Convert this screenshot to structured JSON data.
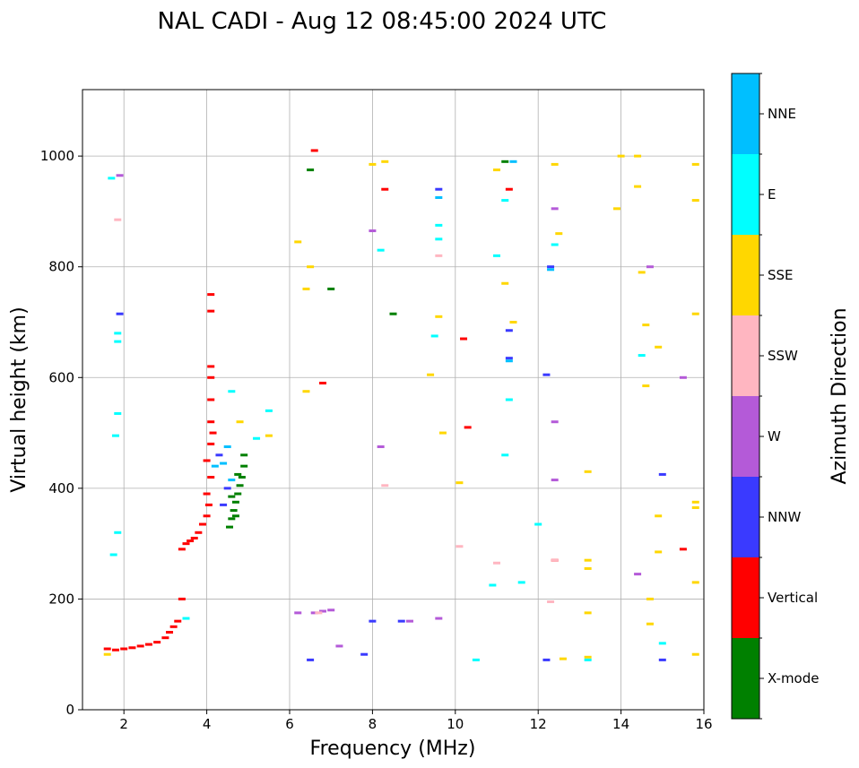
{
  "chart_data": {
    "type": "scatter",
    "title": "NAL CADI - Aug 12 08:45:00 2024 UTC",
    "xlabel": "Frequency (MHz)",
    "ylabel": "Virtual height (km)",
    "xlim": [
      1,
      16
    ],
    "ylim": [
      0,
      1120
    ],
    "xticks": [
      "2",
      "4",
      "6",
      "8",
      "10",
      "12",
      "14",
      "16"
    ],
    "yticks": [
      "0",
      "200",
      "400",
      "600",
      "800",
      "1000"
    ],
    "grid": true,
    "colorbar": {
      "label": "Azimuth Direction",
      "categories": [
        "X-mode",
        "Vertical",
        "NNW",
        "W",
        "SSW",
        "SSE",
        "E",
        "NNE"
      ],
      "colors": [
        "#008000",
        "#ff0000",
        "#3a3aff",
        "#b45ad8",
        "#ffb6c1",
        "#ffd700",
        "#00ffff",
        "#00bfff"
      ]
    },
    "series": [
      {
        "name": "X-mode",
        "points": [
          [
            4.55,
            330
          ],
          [
            4.6,
            345
          ],
          [
            4.65,
            360
          ],
          [
            4.7,
            375
          ],
          [
            4.75,
            390
          ],
          [
            4.8,
            405
          ],
          [
            4.85,
            420
          ],
          [
            4.9,
            440
          ],
          [
            4.9,
            460
          ],
          [
            4.7,
            350
          ],
          [
            4.6,
            385
          ],
          [
            4.75,
            425
          ],
          [
            11.2,
            990
          ],
          [
            7.0,
            760
          ],
          [
            8.5,
            715
          ],
          [
            6.5,
            975
          ]
        ]
      },
      {
        "name": "Vertical",
        "points": [
          [
            1.6,
            110
          ],
          [
            1.8,
            108
          ],
          [
            2.0,
            110
          ],
          [
            2.2,
            112
          ],
          [
            2.4,
            115
          ],
          [
            2.6,
            118
          ],
          [
            2.8,
            122
          ],
          [
            3.0,
            130
          ],
          [
            3.1,
            140
          ],
          [
            3.2,
            150
          ],
          [
            3.3,
            160
          ],
          [
            3.4,
            200
          ],
          [
            3.4,
            290
          ],
          [
            3.5,
            300
          ],
          [
            3.6,
            305
          ],
          [
            3.7,
            310
          ],
          [
            3.8,
            320
          ],
          [
            3.9,
            335
          ],
          [
            4.0,
            350
          ],
          [
            4.05,
            370
          ],
          [
            4.0,
            390
          ],
          [
            4.1,
            420
          ],
          [
            4.0,
            450
          ],
          [
            4.1,
            480
          ],
          [
            4.15,
            500
          ],
          [
            4.1,
            520
          ],
          [
            4.1,
            560
          ],
          [
            4.1,
            600
          ],
          [
            4.1,
            620
          ],
          [
            4.1,
            720
          ],
          [
            4.1,
            750
          ],
          [
            6.6,
            1010
          ],
          [
            6.8,
            590
          ],
          [
            10.2,
            670
          ],
          [
            11.3,
            940
          ],
          [
            10.3,
            510
          ],
          [
            12.4,
            270
          ],
          [
            15.5,
            290
          ],
          [
            8.3,
            940
          ]
        ]
      },
      {
        "name": "NNW",
        "points": [
          [
            1.9,
            715
          ],
          [
            4.3,
            460
          ],
          [
            4.5,
            400
          ],
          [
            4.4,
            370
          ],
          [
            8.0,
            160
          ],
          [
            8.7,
            160
          ],
          [
            12.2,
            605
          ],
          [
            12.3,
            800
          ],
          [
            11.3,
            685
          ],
          [
            11.3,
            635
          ],
          [
            15.0,
            425
          ],
          [
            15.0,
            90
          ],
          [
            12.2,
            90
          ],
          [
            6.5,
            90
          ],
          [
            7.8,
            100
          ],
          [
            9.6,
            940
          ]
        ]
      },
      {
        "name": "W",
        "points": [
          [
            1.9,
            965
          ],
          [
            6.2,
            175
          ],
          [
            6.6,
            175
          ],
          [
            6.8,
            178
          ],
          [
            7.0,
            180
          ],
          [
            7.2,
            115
          ],
          [
            8.2,
            475
          ],
          [
            8.0,
            865
          ],
          [
            12.4,
            905
          ],
          [
            12.4,
            520
          ],
          [
            12.4,
            415
          ],
          [
            14.4,
            245
          ],
          [
            14.7,
            800
          ],
          [
            15.5,
            600
          ],
          [
            9.6,
            165
          ],
          [
            8.9,
            160
          ]
        ]
      },
      {
        "name": "SSW",
        "points": [
          [
            1.85,
            885
          ],
          [
            10.1,
            295
          ],
          [
            12.3,
            195
          ],
          [
            12.4,
            270
          ],
          [
            9.6,
            820
          ],
          [
            11.0,
            265
          ],
          [
            8.3,
            405
          ],
          [
            6.7,
            175
          ]
        ]
      },
      {
        "name": "SSE",
        "points": [
          [
            1.6,
            100
          ],
          [
            6.4,
            760
          ],
          [
            6.5,
            800
          ],
          [
            6.2,
            845
          ],
          [
            8.0,
            985
          ],
          [
            8.3,
            990
          ],
          [
            9.4,
            605
          ],
          [
            9.6,
            710
          ],
          [
            9.7,
            500
          ],
          [
            10.1,
            410
          ],
          [
            11.0,
            975
          ],
          [
            11.2,
            770
          ],
          [
            11.4,
            700
          ],
          [
            12.4,
            985
          ],
          [
            12.5,
            860
          ],
          [
            13.2,
            430
          ],
          [
            13.2,
            270
          ],
          [
            13.2,
            255
          ],
          [
            13.2,
            175
          ],
          [
            13.2,
            95
          ],
          [
            12.6,
            92
          ],
          [
            14.0,
            1000
          ],
          [
            14.4,
            1000
          ],
          [
            14.5,
            790
          ],
          [
            14.6,
            695
          ],
          [
            14.9,
            655
          ],
          [
            14.6,
            585
          ],
          [
            14.9,
            350
          ],
          [
            14.9,
            285
          ],
          [
            14.7,
            200
          ],
          [
            14.7,
            155
          ],
          [
            15.8,
            985
          ],
          [
            15.8,
            920
          ],
          [
            15.8,
            715
          ],
          [
            15.8,
            375
          ],
          [
            15.8,
            365
          ],
          [
            15.8,
            230
          ],
          [
            15.8,
            100
          ],
          [
            14.4,
            945
          ],
          [
            13.9,
            905
          ],
          [
            4.8,
            520
          ],
          [
            5.5,
            495
          ],
          [
            6.4,
            575
          ]
        ]
      },
      {
        "name": "E",
        "points": [
          [
            1.7,
            960
          ],
          [
            1.85,
            680
          ],
          [
            1.85,
            665
          ],
          [
            1.85,
            535
          ],
          [
            1.8,
            495
          ],
          [
            1.85,
            320
          ],
          [
            1.75,
            280
          ],
          [
            3.5,
            165
          ],
          [
            4.6,
            575
          ],
          [
            5.2,
            490
          ],
          [
            5.5,
            540
          ],
          [
            8.2,
            830
          ],
          [
            9.6,
            875
          ],
          [
            9.6,
            850
          ],
          [
            9.5,
            675
          ],
          [
            10.5,
            90
          ],
          [
            11.0,
            820
          ],
          [
            11.2,
            920
          ],
          [
            11.2,
            460
          ],
          [
            11.3,
            560
          ],
          [
            12.0,
            335
          ],
          [
            12.4,
            840
          ],
          [
            13.2,
            90
          ],
          [
            14.5,
            640
          ],
          [
            15.0,
            120
          ],
          [
            11.6,
            230
          ],
          [
            10.9,
            225
          ]
        ]
      },
      {
        "name": "NNE",
        "points": [
          [
            4.4,
            445
          ],
          [
            4.5,
            475
          ],
          [
            4.2,
            440
          ],
          [
            4.6,
            415
          ],
          [
            9.6,
            925
          ],
          [
            11.3,
            630
          ],
          [
            12.3,
            795
          ],
          [
            11.4,
            990
          ]
        ]
      }
    ]
  }
}
